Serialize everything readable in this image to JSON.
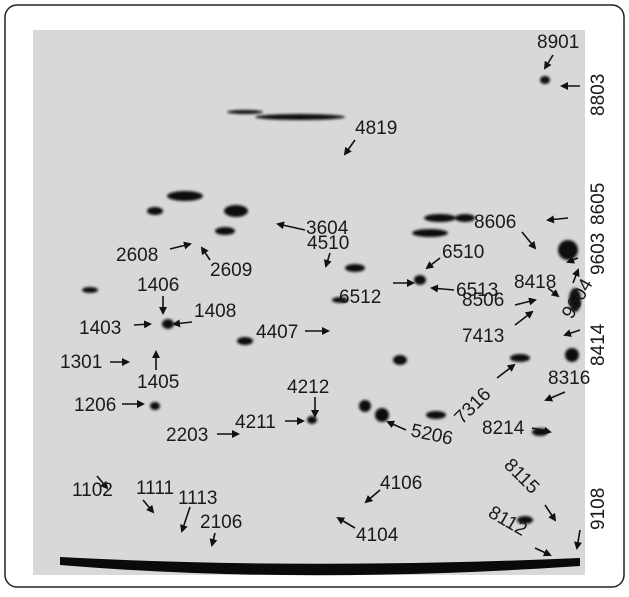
{
  "labels": [
    "8901",
    "8803",
    "4819",
    "8605",
    "8606",
    "3604",
    "4510",
    "6510",
    "9603",
    "2608",
    "2609",
    "6512",
    "6513",
    "8418",
    "1406",
    "9604",
    "8506",
    "1408",
    "1403",
    "7413",
    "4407",
    "8414",
    "1301",
    "1405",
    "8316",
    "4212",
    "1206",
    "7316",
    "4211",
    "8214",
    "2203",
    "5206",
    "4106",
    "8115",
    "1102",
    "1111",
    "1113",
    "9108",
    "2106",
    "4104",
    "8112"
  ]
}
